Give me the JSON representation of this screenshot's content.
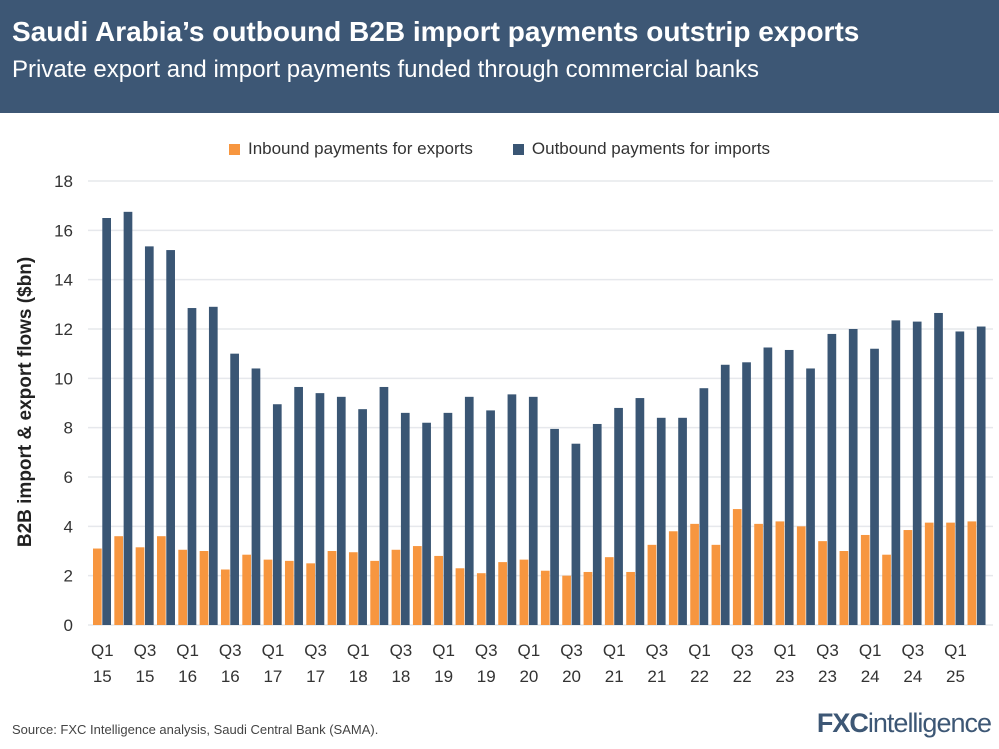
{
  "header": {
    "title": "Saudi Arabia’s outbound B2B import payments outstrip exports",
    "subtitle": "Private export and import payments funded through commercial banks"
  },
  "footer": {
    "source": "Source: FXC Intelligence analysis, Saudi Central Bank (SAMA).",
    "logo": "FXCintelligence"
  },
  "colors": {
    "header": "#3d5775",
    "inbound": "#f7963f",
    "outbound": "#3a5674",
    "grid": "#e6e8ec"
  },
  "chart_data": {
    "type": "bar",
    "title": "",
    "xlabel": "",
    "ylabel": "B2B import & export flows ($bn)",
    "ylim": [
      0,
      18
    ],
    "yticks": [
      0,
      2,
      4,
      6,
      8,
      10,
      12,
      14,
      16,
      18
    ],
    "grid": true,
    "legend_position": "top",
    "categories": [
      "Q1 15",
      "Q2 15",
      "Q3 15",
      "Q4 15",
      "Q1 16",
      "Q2 16",
      "Q3 16",
      "Q4 16",
      "Q1 17",
      "Q2 17",
      "Q3 17",
      "Q4 17",
      "Q1 18",
      "Q2 18",
      "Q3 18",
      "Q4 18",
      "Q1 19",
      "Q2 19",
      "Q3 19",
      "Q4 19",
      "Q1 20",
      "Q2 20",
      "Q3 20",
      "Q4 20",
      "Q1 21",
      "Q2 21",
      "Q3 21",
      "Q4 21",
      "Q1 22",
      "Q2 22",
      "Q3 22",
      "Q4 22",
      "Q1 23",
      "Q2 23",
      "Q3 23",
      "Q4 23",
      "Q1 24",
      "Q2 24",
      "Q3 24",
      "Q4 24",
      "Q1 25",
      "Q2 25"
    ],
    "tick_labels": [
      {
        "q": "Q1",
        "y": "15"
      },
      {
        "q": "Q3",
        "y": "15"
      },
      {
        "q": "Q1",
        "y": "16"
      },
      {
        "q": "Q3",
        "y": "16"
      },
      {
        "q": "Q1",
        "y": "17"
      },
      {
        "q": "Q3",
        "y": "17"
      },
      {
        "q": "Q1",
        "y": "18"
      },
      {
        "q": "Q3",
        "y": "18"
      },
      {
        "q": "Q1",
        "y": "19"
      },
      {
        "q": "Q3",
        "y": "19"
      },
      {
        "q": "Q1",
        "y": "20"
      },
      {
        "q": "Q3",
        "y": "20"
      },
      {
        "q": "Q1",
        "y": "21"
      },
      {
        "q": "Q3",
        "y": "21"
      },
      {
        "q": "Q1",
        "y": "22"
      },
      {
        "q": "Q3",
        "y": "22"
      },
      {
        "q": "Q1",
        "y": "23"
      },
      {
        "q": "Q3",
        "y": "23"
      },
      {
        "q": "Q1",
        "y": "24"
      },
      {
        "q": "Q3",
        "y": "24"
      },
      {
        "q": "Q1",
        "y": "25"
      }
    ],
    "series": [
      {
        "name": "Inbound payments for exports",
        "color": "#f7963f",
        "values": [
          3.1,
          3.6,
          3.15,
          3.6,
          3.05,
          3.0,
          2.25,
          2.85,
          2.65,
          2.6,
          2.5,
          3.0,
          2.95,
          2.6,
          3.05,
          3.2,
          2.8,
          2.3,
          2.1,
          2.55,
          2.65,
          2.2,
          2.0,
          2.15,
          2.75,
          2.15,
          3.25,
          3.8,
          4.1,
          3.25,
          4.7,
          4.1,
          4.2,
          4.0,
          3.4,
          3.0,
          3.65,
          2.85,
          3.85,
          4.15,
          4.15,
          4.2
        ]
      },
      {
        "name": "Outbound payments for imports",
        "color": "#3a5674",
        "values": [
          16.5,
          16.75,
          15.35,
          15.2,
          12.85,
          12.9,
          11.0,
          10.4,
          8.95,
          9.65,
          9.4,
          9.25,
          8.75,
          9.65,
          8.6,
          8.2,
          8.6,
          9.25,
          8.7,
          9.35,
          9.25,
          7.95,
          7.35,
          8.15,
          8.8,
          9.2,
          8.4,
          8.4,
          9.6,
          10.55,
          10.65,
          11.25,
          11.15,
          10.4,
          11.8,
          12.0,
          11.2,
          12.35,
          12.3,
          12.65,
          11.9,
          12.1
        ]
      }
    ]
  }
}
